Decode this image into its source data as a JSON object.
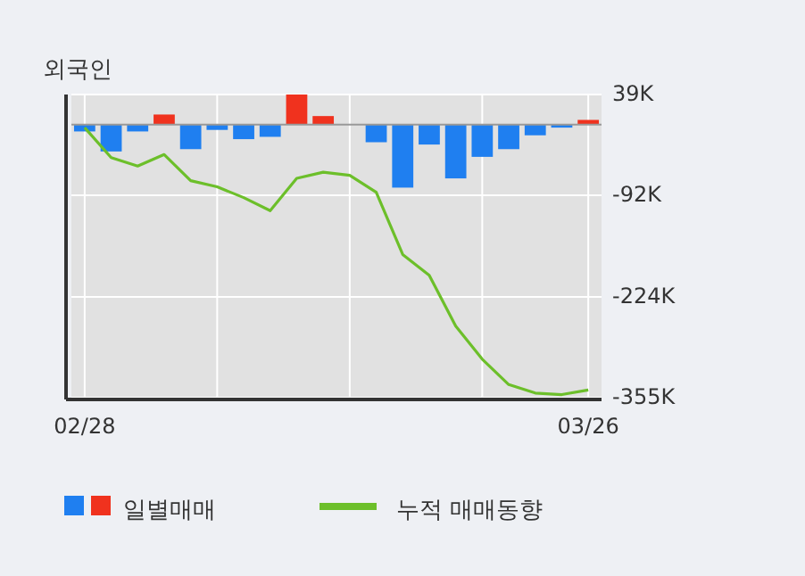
{
  "chart_data": {
    "type": "bar",
    "title": "외국인",
    "categories": [
      "02/28",
      null,
      null,
      null,
      null,
      null,
      null,
      null,
      null,
      null,
      null,
      null,
      null,
      null,
      null,
      null,
      null,
      null,
      null,
      "03/26"
    ],
    "series": [
      {
        "name": "일별매매",
        "colors": [
          "#1f7ff0",
          "#1f7ff0",
          "#1f7ff0",
          "#f0321e",
          "#1f7ff0",
          "#1f7ff0",
          "#1f7ff0",
          "#1f7ff0",
          "#f0321e",
          "#f0321e",
          "#1f7ff0",
          "#1f7ff0",
          "#1f7ff0",
          "#1f7ff0",
          "#1f7ff0",
          "#1f7ff0",
          "#1f7ff0",
          "#1f7ff0",
          "#1f7ff0",
          "#f0321e"
        ],
        "values": [
          -9,
          -35,
          -9,
          13,
          -32,
          -7,
          -19,
          -16,
          39,
          11,
          0,
          -23,
          -82,
          -26,
          -70,
          -42,
          -32,
          -14,
          -4,
          6
        ]
      },
      {
        "name": "누적 매매동향",
        "type": "line",
        "color": "#6cbf2a",
        "values": [
          -4,
          -43,
          -54,
          -39,
          -73,
          -81,
          -95,
          -112,
          -70,
          -62,
          -66,
          -88,
          -169,
          -196,
          -262,
          -305,
          -338,
          -349,
          -351,
          -345
        ]
      }
    ],
    "ylim": [
      -355,
      39
    ],
    "yticks": [
      {
        "value": 39,
        "label": "39K"
      },
      {
        "value": -92,
        "label": "-92K"
      },
      {
        "value": -224,
        "label": "-224K"
      },
      {
        "value": -355,
        "label": "-355K"
      }
    ],
    "grid": true,
    "legend": "bottom"
  }
}
